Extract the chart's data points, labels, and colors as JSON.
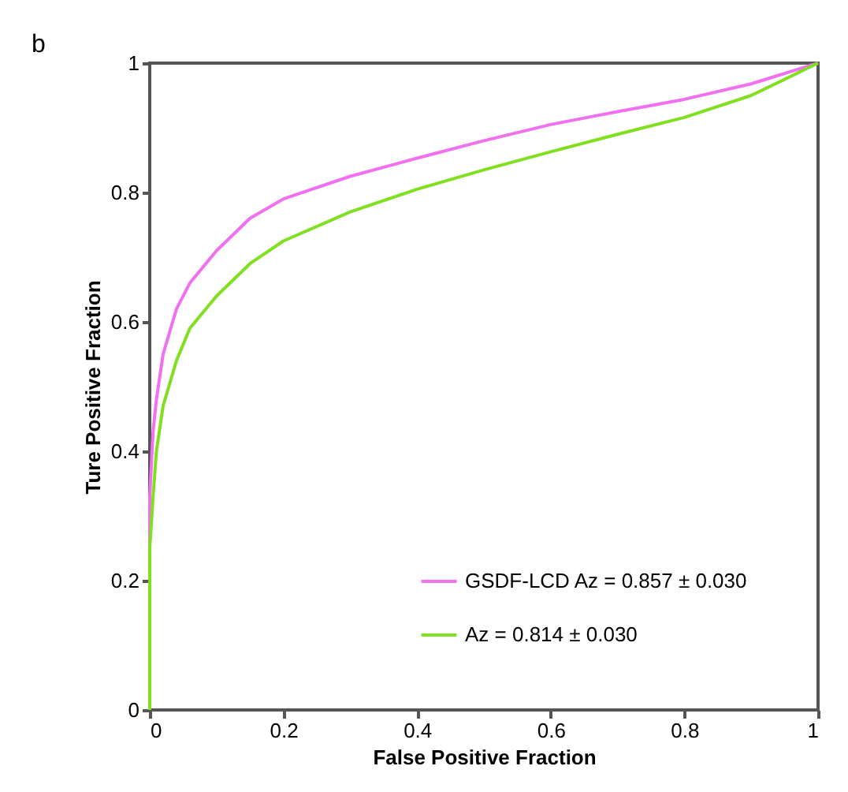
{
  "chart_data": {
    "type": "line",
    "xlabel": "False Positive Fraction",
    "ylabel": "Ture Positive Fraction",
    "annotations": [
      "b"
    ],
    "xlim": [
      0,
      1
    ],
    "ylim": [
      0,
      1
    ],
    "xticks": [
      0,
      0.2,
      0.4,
      0.6,
      0.8,
      1
    ],
    "yticks": [
      0,
      0.2,
      0.4,
      0.6,
      0.8,
      1
    ],
    "grid": false,
    "legend": "bottom right",
    "marker": "none",
    "line_style": "solid",
    "series": [
      {
        "name": "GSDF-LCD  Az = 0.857 ± 0.030",
        "color": "#f070f0",
        "x": [
          0,
          0,
          0.005,
          0.01,
          0.02,
          0.04,
          0.06,
          0.1,
          0.15,
          0.2,
          0.3,
          0.4,
          0.5,
          0.6,
          0.7,
          0.8,
          0.9,
          1
        ],
        "values": [
          0,
          0.33,
          0.43,
          0.48,
          0.55,
          0.62,
          0.66,
          0.71,
          0.76,
          0.79,
          0.825,
          0.853,
          0.88,
          0.905,
          0.925,
          0.944,
          0.968,
          1
        ]
      },
      {
        "name": "Az = 0.814 ± 0.030",
        "color": "#80e020",
        "x": [
          0,
          0,
          0.005,
          0.01,
          0.02,
          0.04,
          0.06,
          0.1,
          0.15,
          0.2,
          0.3,
          0.4,
          0.5,
          0.6,
          0.7,
          0.8,
          0.9,
          1
        ],
        "values": [
          0,
          0.25,
          0.33,
          0.4,
          0.47,
          0.54,
          0.59,
          0.64,
          0.69,
          0.725,
          0.77,
          0.805,
          0.835,
          0.863,
          0.89,
          0.916,
          0.95,
          1
        ]
      }
    ]
  }
}
